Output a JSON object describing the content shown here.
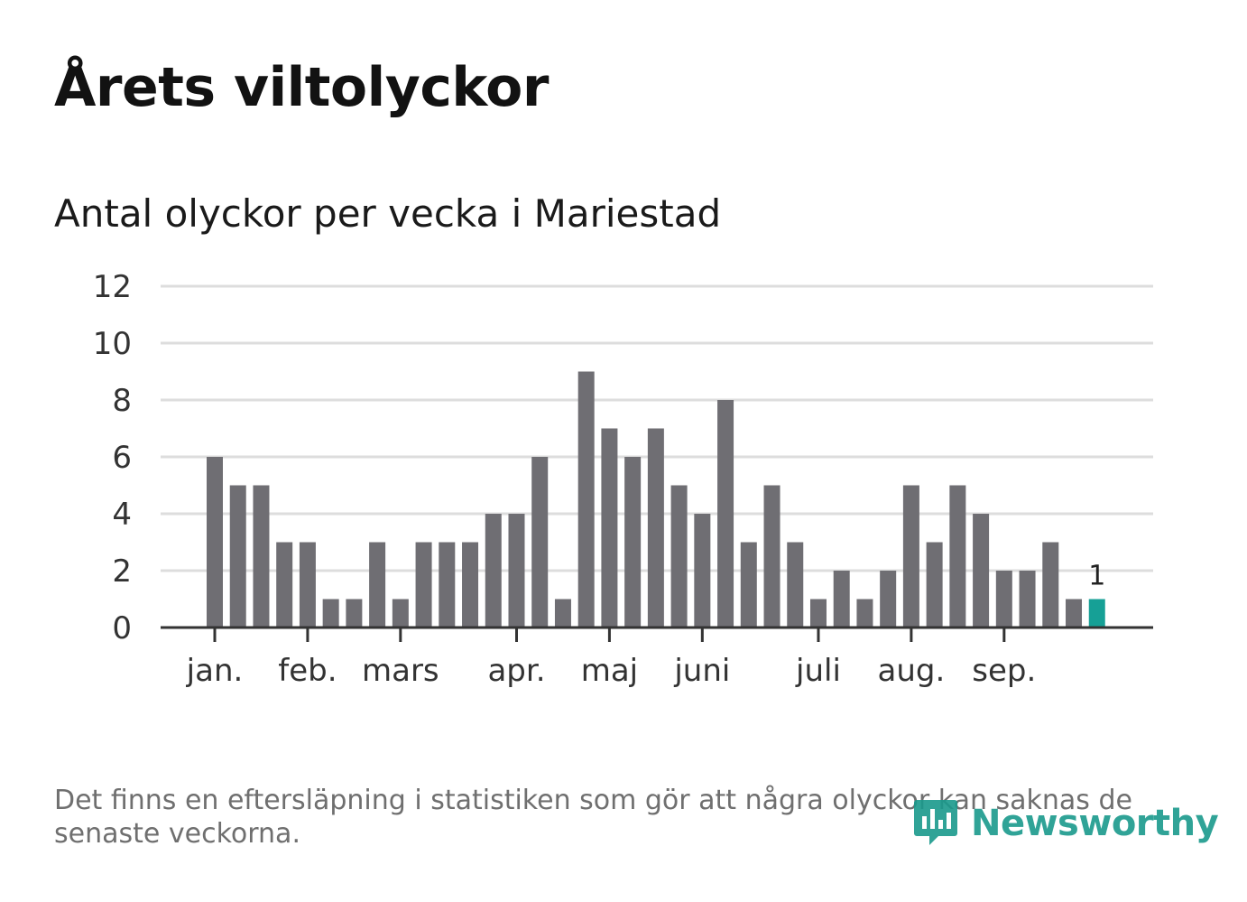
{
  "title": "Årets viltolyckor",
  "subtitle": "Antal olyckor per vecka i Mariestad",
  "footnote": "Det finns en eftersläpning i statistiken som gör att några olyckor kan saknas de senaste veckorna.",
  "logo": {
    "text": "Newsworthy",
    "icon": "newsworthy-logo-icon"
  },
  "colors": {
    "bar": "#6f6e73",
    "highlight": "#16a096",
    "grid": "#dddddd",
    "axis": "#333333",
    "footnote": "#6f6f6f"
  },
  "chart_data": {
    "type": "bar",
    "title": "Antal olyckor per vecka i Mariestad",
    "xlabel": "",
    "ylabel": "",
    "ylim": [
      0,
      12
    ],
    "yticks": [
      0,
      2,
      4,
      6,
      8,
      10,
      12
    ],
    "grid": true,
    "weeks": [
      1,
      2,
      3,
      4,
      5,
      6,
      7,
      8,
      9,
      10,
      11,
      12,
      13,
      14,
      15,
      16,
      17,
      18,
      19,
      20,
      21,
      22,
      23,
      24,
      25,
      26,
      27,
      28,
      29,
      30,
      31,
      32,
      33,
      34,
      35,
      36,
      37,
      38,
      39
    ],
    "values": [
      6,
      5,
      5,
      3,
      3,
      1,
      1,
      3,
      1,
      3,
      3,
      3,
      4,
      4,
      6,
      1,
      9,
      7,
      6,
      7,
      5,
      4,
      8,
      3,
      5,
      3,
      1,
      2,
      1,
      2,
      5,
      3,
      5,
      4,
      2,
      2,
      3,
      1,
      1
    ],
    "highlight_index": 38,
    "highlight_label": "1",
    "month_ticks": [
      {
        "label": "jan.",
        "week_index": 0
      },
      {
        "label": "feb.",
        "week_index": 4
      },
      {
        "label": "mars",
        "week_index": 8
      },
      {
        "label": "apr.",
        "week_index": 13
      },
      {
        "label": "maj",
        "week_index": 17
      },
      {
        "label": "juni",
        "week_index": 21
      },
      {
        "label": "juli",
        "week_index": 26
      },
      {
        "label": "aug.",
        "week_index": 30
      },
      {
        "label": "sep.",
        "week_index": 34
      }
    ]
  }
}
